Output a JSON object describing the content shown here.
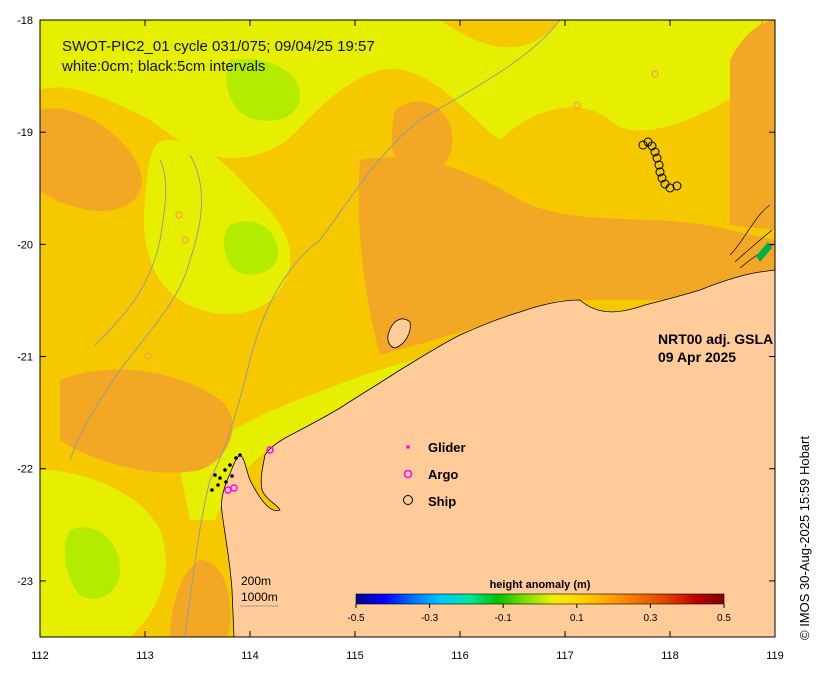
{
  "map": {
    "title_line1": "SWOT-PIC2_01 cycle 031/075; 09/04/25 19:57",
    "title_line2": "white:0cm; black:5cm intervals",
    "product": "NRT00 adj. GSLA",
    "date": "09 Apr 2025",
    "copyright": "© IMOS 30-Aug-2025 15:59 Hobart",
    "scale_labels": [
      "200m",
      "1000m"
    ],
    "x_ticks": [
      "112",
      "113",
      "114",
      "115",
      "116",
      "117",
      "118",
      "119"
    ],
    "y_ticks": [
      "-18",
      "-19",
      "-20",
      "-21",
      "-22",
      "-23"
    ],
    "x_range": [
      112,
      119
    ],
    "y_range": [
      -23.5,
      -18
    ],
    "legend": [
      {
        "label": "Glider",
        "symbol": "glider"
      },
      {
        "label": "Argo",
        "symbol": "argo"
      },
      {
        "label": "Ship",
        "symbol": "ship"
      }
    ],
    "colorbar": {
      "title": "height anomaly (m)",
      "range": [
        -0.5,
        0.5
      ],
      "tick_labels": [
        "-0.5",
        "-0.3",
        "-0.1",
        "0.1",
        "0.3",
        "0.5"
      ],
      "colors": [
        "#00008a",
        "#0000ff",
        "#0070ff",
        "#00c8ff",
        "#00e8a0",
        "#00c000",
        "#80e000",
        "#f0f000",
        "#ffd000",
        "#ffa000",
        "#f07000",
        "#e04000",
        "#c00000",
        "#800000"
      ]
    },
    "colors": {
      "land": "#ffcc99",
      "ocean_base": "#f5c800",
      "ocean_high": "#f2a825",
      "ocean_low": "#e6ef00",
      "ocean_lowest": "#b4ec00",
      "argo": "#ff00ff",
      "glider": "#ff00ff",
      "contour": "#9a9a9a"
    }
  }
}
